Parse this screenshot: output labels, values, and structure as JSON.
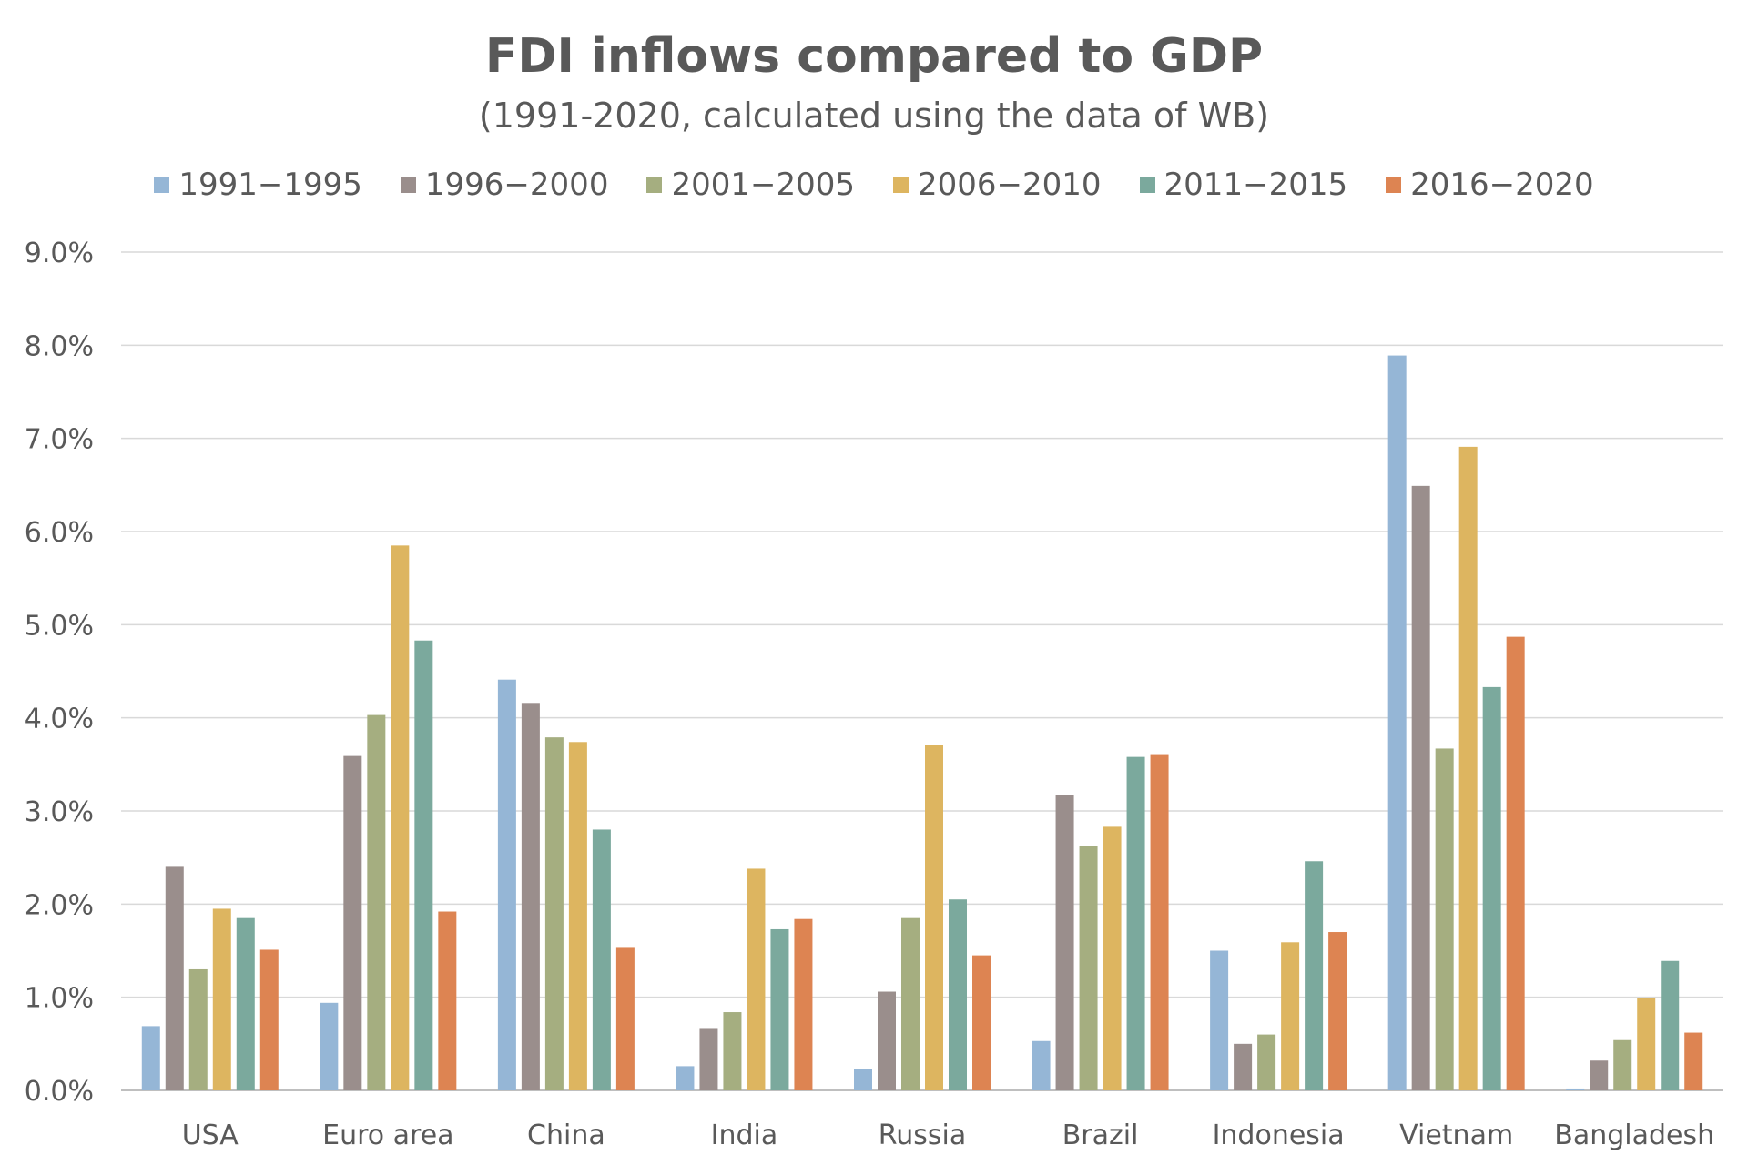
{
  "chart_data": {
    "type": "bar",
    "title": "FDI inflows compared to GDP",
    "subtitle": "(1991-2020, calculated using the data of WB)",
    "categories": [
      "USA",
      "Euro area",
      "China",
      "India",
      "Russia",
      "Brazil",
      "Indonesia",
      "Vietnam",
      "Bangladesh"
    ],
    "series": [
      {
        "name": "1991−1995",
        "color": "#95B6D6",
        "values": [
          0.69,
          0.94,
          4.41,
          0.26,
          0.23,
          0.53,
          1.5,
          7.89,
          0.02
        ]
      },
      {
        "name": "1996−2000",
        "color": "#9A8E8C",
        "values": [
          2.4,
          3.59,
          4.16,
          0.66,
          1.06,
          3.17,
          0.5,
          6.49,
          0.32
        ]
      },
      {
        "name": "2001−2005",
        "color": "#A5AE80",
        "values": [
          1.3,
          4.03,
          3.79,
          0.84,
          1.85,
          2.62,
          0.6,
          3.67,
          0.54
        ]
      },
      {
        "name": "2006−2010",
        "color": "#DDB560",
        "values": [
          1.95,
          5.85,
          3.74,
          2.38,
          3.71,
          2.83,
          1.59,
          6.91,
          0.99
        ]
      },
      {
        "name": "2011−2015",
        "color": "#7BA99D",
        "values": [
          1.85,
          4.83,
          2.8,
          1.73,
          2.05,
          3.58,
          2.46,
          4.33,
          1.39
        ]
      },
      {
        "name": "2016−2020",
        "color": "#DD8452",
        "values": [
          1.51,
          1.92,
          1.53,
          1.84,
          1.45,
          3.61,
          1.7,
          4.87,
          0.62
        ]
      }
    ],
    "ylim": [
      0,
      9
    ],
    "yticks": [
      "0.0%",
      "1.0%",
      "2.0%",
      "3.0%",
      "4.0%",
      "5.0%",
      "6.0%",
      "7.0%",
      "8.0%",
      "9.0%"
    ],
    "grid": true,
    "legend_position": "top"
  }
}
